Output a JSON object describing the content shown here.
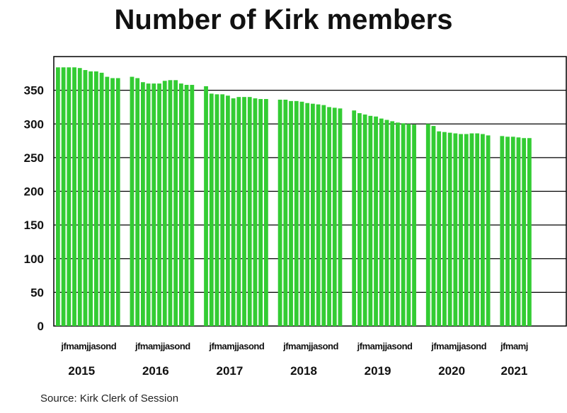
{
  "chart_data": {
    "type": "bar",
    "title": "Number of Kirk members",
    "source": "Source: Kirk Clerk of Session",
    "ylim": [
      0,
      400
    ],
    "yticks": [
      0,
      50,
      100,
      150,
      200,
      250,
      300,
      350
    ],
    "grid": true,
    "bar_color": "#33cc33",
    "month_tick_label": "jfmamjjasond",
    "month_tick_label_partial": "jfmamj",
    "years": [
      {
        "year": "2015",
        "values": [
          384,
          384,
          384,
          384,
          383,
          380,
          378,
          378,
          376,
          370,
          368,
          368
        ]
      },
      {
        "year": "2016",
        "values": [
          370,
          368,
          362,
          360,
          360,
          360,
          364,
          365,
          365,
          360,
          358,
          358
        ]
      },
      {
        "year": "2017",
        "values": [
          356,
          345,
          344,
          344,
          342,
          338,
          340,
          340,
          340,
          338,
          337,
          337
        ]
      },
      {
        "year": "2018",
        "values": [
          336,
          336,
          334,
          334,
          333,
          331,
          330,
          329,
          328,
          325,
          324,
          323
        ]
      },
      {
        "year": "2019",
        "values": [
          320,
          316,
          314,
          312,
          311,
          308,
          306,
          304,
          302,
          301,
          300,
          299
        ]
      },
      {
        "year": "2020",
        "values": [
          300,
          297,
          289,
          288,
          287,
          286,
          285,
          285,
          286,
          286,
          285,
          283
        ]
      },
      {
        "year": "2021",
        "values": [
          282,
          281,
          281,
          280,
          279,
          279
        ]
      }
    ]
  }
}
